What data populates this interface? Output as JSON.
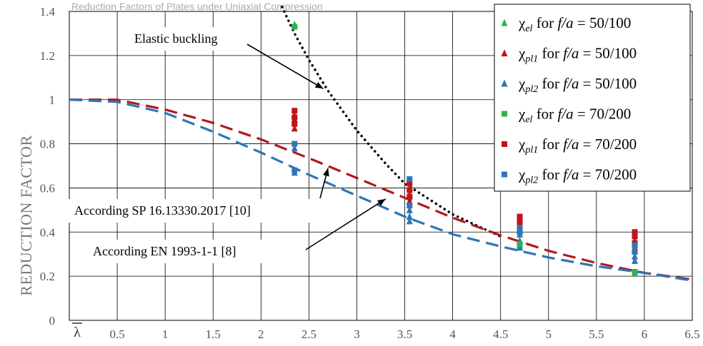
{
  "top_caption": "Reduction Factors of Plates under Uniaxial Compression",
  "chart_data": {
    "type": "scatter",
    "xlabel": "λ",
    "ylabel": "REDUCTION FACTOR",
    "xlim": [
      0,
      6.5
    ],
    "ylim": [
      0,
      1.4
    ],
    "x_ticks": [
      "0.5",
      "1",
      "1.5",
      "2",
      "2.5",
      "3",
      "3.5",
      "4",
      "4.5",
      "5",
      "5.5",
      "6",
      "6.5"
    ],
    "y_ticks": [
      "0",
      "0.2",
      "0.4",
      "0.6",
      "0.8",
      "1",
      "1.2",
      "1.4"
    ],
    "grid": true,
    "legend_position": "top-right",
    "curves": [
      {
        "name": "Elastic buckling",
        "style": "dotted",
        "color": "#000000",
        "x": [
          2.22,
          2.35,
          2.5,
          2.7,
          3.0,
          3.3,
          3.5,
          4.0,
          4.5
        ],
        "y": [
          1.42,
          1.3,
          1.18,
          1.04,
          0.86,
          0.71,
          0.62,
          0.48,
          0.38
        ]
      },
      {
        "name": "According SP 16.13330.2017 [10]",
        "style": "dashed",
        "color": "#b0191e",
        "x": [
          0,
          0.5,
          1.0,
          1.5,
          2.0,
          2.5,
          3.0,
          3.5,
          4.0,
          4.5,
          5.0,
          5.5,
          6.0,
          6.5
        ],
        "y": [
          1.0,
          1.0,
          0.955,
          0.895,
          0.82,
          0.735,
          0.645,
          0.555,
          0.465,
          0.385,
          0.315,
          0.26,
          0.215,
          0.185
        ]
      },
      {
        "name": "According EN 1993-1-1 [8]",
        "style": "dashed",
        "color": "#2e75b6",
        "x": [
          0,
          0.5,
          1.0,
          1.5,
          2.0,
          2.5,
          3.0,
          3.5,
          4.0,
          4.5,
          5.0,
          5.5,
          6.0,
          6.5
        ],
        "y": [
          1.0,
          0.99,
          0.94,
          0.855,
          0.76,
          0.66,
          0.565,
          0.47,
          0.39,
          0.335,
          0.285,
          0.245,
          0.215,
          0.18
        ]
      }
    ],
    "series": [
      {
        "name_parts": [
          "χ",
          "el",
          " for ",
          "f/a",
          " = 50/100"
        ],
        "marker": "triangle",
        "color": "#2db34a",
        "x": [
          2.35,
          4.7,
          5.9
        ],
        "y": [
          1.34,
          0.34,
          0.215
        ]
      },
      {
        "name_parts": [
          "χ",
          "pl1",
          " for ",
          "f/a",
          " = 50/100"
        ],
        "marker": "triangle",
        "color": "#c0141b",
        "x": [
          2.35,
          2.35,
          2.35,
          3.55,
          3.55,
          3.55,
          4.7,
          4.7,
          4.7,
          5.9,
          5.9,
          5.9
        ],
        "y": [
          0.91,
          0.87,
          0.93,
          0.6,
          0.57,
          0.54,
          0.46,
          0.43,
          0.41,
          0.39,
          0.36,
          0.33
        ]
      },
      {
        "name_parts": [
          "χ",
          "pl2",
          " for ",
          "f/a",
          " = 50/100"
        ],
        "marker": "triangle",
        "color": "#2e75b6",
        "x": [
          2.35,
          2.35,
          3.55,
          3.55,
          3.55,
          4.7,
          4.7,
          4.7,
          5.9,
          5.9,
          5.9
        ],
        "y": [
          0.78,
          0.67,
          0.5,
          0.47,
          0.45,
          0.39,
          0.36,
          0.33,
          0.32,
          0.29,
          0.27
        ]
      },
      {
        "name_parts": [
          "χ",
          "el",
          " for ",
          "f/a",
          " = 70/200"
        ],
        "marker": "square",
        "color": "#2db34a",
        "x": [
          2.35,
          4.7,
          5.9
        ],
        "y": [
          1.33,
          0.345,
          0.22
        ]
      },
      {
        "name_parts": [
          "χ",
          "pl1",
          " for ",
          "f/a",
          " = 70/200"
        ],
        "marker": "square",
        "color": "#c0141b",
        "x": [
          2.35,
          2.35,
          2.35,
          3.55,
          3.55,
          3.55,
          4.7,
          4.7,
          4.7,
          5.9,
          5.9,
          5.9
        ],
        "y": [
          0.95,
          0.92,
          0.89,
          0.62,
          0.59,
          0.56,
          0.47,
          0.45,
          0.43,
          0.4,
          0.38,
          0.35
        ]
      },
      {
        "name_parts": [
          "χ",
          "pl2",
          " for ",
          "f/a",
          " = 70/200"
        ],
        "marker": "square",
        "color": "#2e75b6",
        "x": [
          2.35,
          2.35,
          3.55,
          3.55,
          4.7,
          4.7,
          5.9,
          5.9
        ],
        "y": [
          0.8,
          0.68,
          0.64,
          0.52,
          0.42,
          0.4,
          0.34,
          0.31
        ]
      }
    ],
    "annotations": [
      {
        "text": "Elastic buckling",
        "arrow_to": [
          2.65,
          1.05
        ]
      },
      {
        "text": "According SP 16.13330.2017 [10]",
        "arrow_to": [
          2.7,
          0.69
        ]
      },
      {
        "text": "According EN 1993-1-1 [8]",
        "arrow_to": [
          3.3,
          0.55
        ]
      }
    ]
  }
}
